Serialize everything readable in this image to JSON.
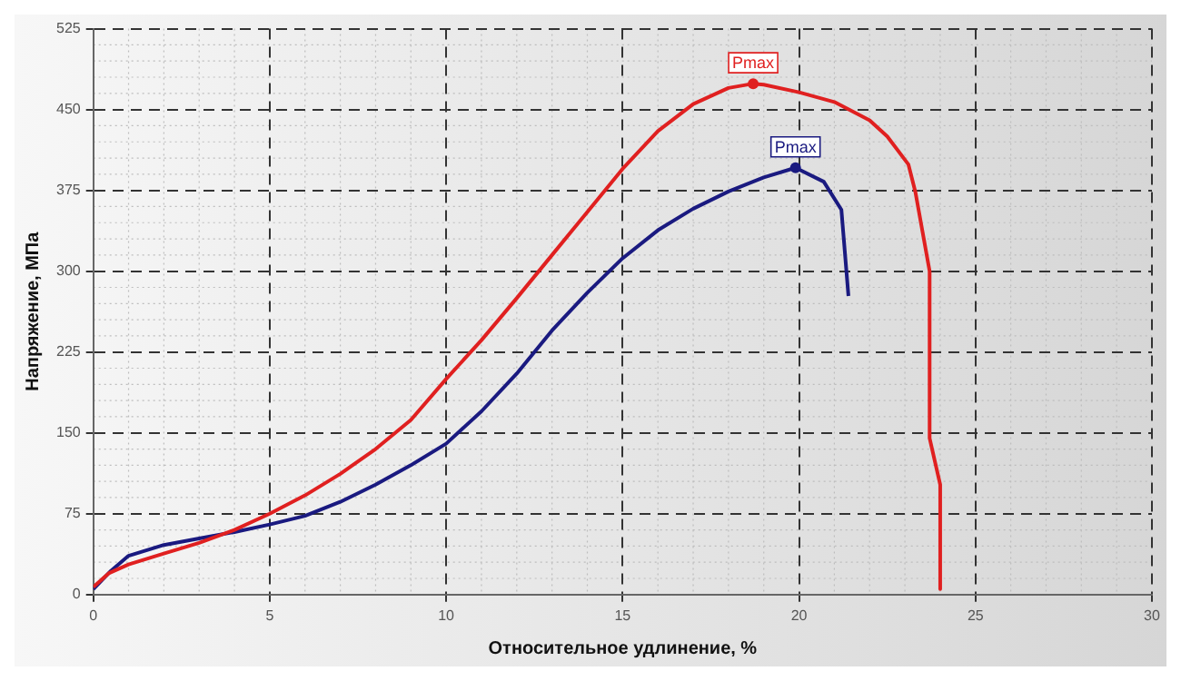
{
  "chart_data": {
    "type": "line",
    "xlabel": "Относительное удлинение, %",
    "ylabel": "Напряжение, МПа",
    "xlim": [
      0,
      30
    ],
    "xticks": [
      0,
      5,
      10,
      15,
      20,
      25,
      30
    ],
    "ylim": [
      0,
      525
    ],
    "yticks": [
      0,
      75,
      150,
      225,
      300,
      375,
      450,
      525
    ],
    "grid": true,
    "marker": "none",
    "line_style": "solid",
    "series": [
      {
        "color": "#e02020",
        "x": [
          0,
          0.45,
          1,
          2,
          3,
          4,
          5,
          6,
          7,
          8,
          9,
          10,
          11,
          12,
          13,
          14,
          15,
          16,
          17,
          18,
          18.7,
          19,
          20,
          21,
          22,
          22.5,
          23.1,
          23.3,
          23.7,
          23.7,
          24,
          24
        ],
        "values": [
          7,
          20,
          28,
          38,
          48,
          60,
          75,
          92,
          112,
          135,
          162,
          200,
          236,
          275,
          315,
          355,
          395,
          430,
          455,
          470,
          474,
          473,
          466,
          457,
          440,
          425,
          399,
          373,
          300,
          145,
          102,
          5
        ]
      },
      {
        "color": "#1a1a80",
        "x": [
          0,
          0.5,
          1,
          2,
          3,
          4,
          5,
          6,
          7,
          8,
          9,
          10,
          11,
          12,
          13,
          14,
          15,
          16,
          17,
          18,
          19,
          19.9,
          20.7,
          21.2,
          21.4
        ],
        "values": [
          5,
          22,
          36,
          46,
          52,
          58,
          65,
          73,
          86,
          102,
          120,
          140,
          170,
          205,
          245,
          280,
          312,
          338,
          358,
          374,
          387,
          396,
          383,
          357,
          277
        ]
      }
    ],
    "annotations": [
      {
        "text": "Pmax",
        "x": 18.7,
        "y": 474
      },
      {
        "text": "Pmax",
        "x": 19.9,
        "y": 396
      }
    ]
  }
}
